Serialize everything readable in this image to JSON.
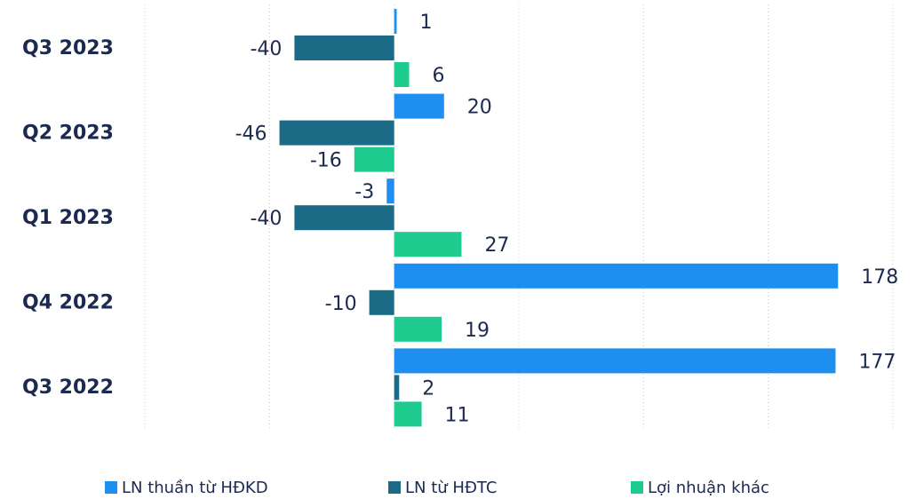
{
  "chart_data": {
    "type": "hbar",
    "categories": [
      "Q3 2023",
      "Q2 2023",
      "Q1 2023",
      "Q4 2022",
      "Q3 2022"
    ],
    "series": [
      {
        "name": "LN thuần từ HĐKD",
        "color": "#1e8ff0",
        "values": [
          1,
          20,
          -3,
          178,
          177
        ]
      },
      {
        "name": "LN từ HĐTC",
        "color": "#1b6a86",
        "values": [
          -40,
          -46,
          -40,
          -10,
          2
        ]
      },
      {
        "name": "Lợi nhuận khác",
        "color": "#1ecb8f",
        "values": [
          6,
          -16,
          27,
          19,
          11
        ]
      }
    ],
    "xlim": [
      -100,
      200
    ],
    "xticks": [
      -100,
      -50,
      0,
      50,
      100,
      150,
      200
    ],
    "grid": true,
    "legend": "bottom"
  }
}
